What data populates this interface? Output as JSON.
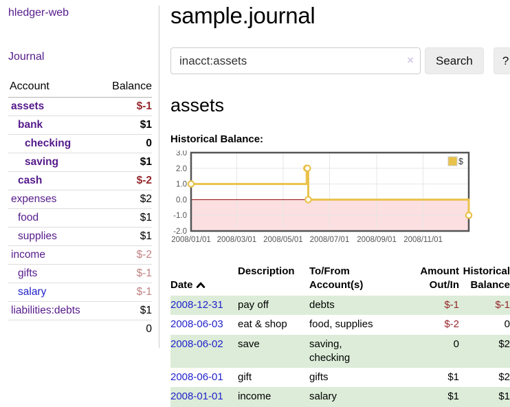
{
  "sidebar": {
    "app_title": "hledger-web",
    "nav": {
      "journal_label": "Journal"
    },
    "accounts_table": {
      "headers": {
        "account": "Account",
        "balance": "Balance"
      },
      "rows": [
        {
          "name": "assets",
          "balance": "$-1",
          "depth": 1,
          "bold": true,
          "link": "purple"
        },
        {
          "name": "bank",
          "balance": "$1",
          "depth": 2,
          "bold": true,
          "link": "purple"
        },
        {
          "name": "checking",
          "balance": "0",
          "depth": 3,
          "bold": true,
          "link": "purple"
        },
        {
          "name": "saving",
          "balance": "$1",
          "depth": 3,
          "bold": true,
          "link": "purple"
        },
        {
          "name": "cash",
          "balance": "$-2",
          "depth": 2,
          "bold": true,
          "link": "purple"
        },
        {
          "name": "expenses",
          "balance": "$2",
          "depth": 1,
          "bold": false,
          "link": "purple"
        },
        {
          "name": "food",
          "balance": "$1",
          "depth": 2,
          "bold": false,
          "link": "purple"
        },
        {
          "name": "supplies",
          "balance": "$1",
          "depth": 2,
          "bold": false,
          "link": "purple"
        },
        {
          "name": "income",
          "balance": "$-2",
          "depth": 1,
          "bold": false,
          "link": "purple"
        },
        {
          "name": "gifts",
          "balance": "$-1",
          "depth": 2,
          "bold": false,
          "link": "purple"
        },
        {
          "name": "salary",
          "balance": "$-1",
          "depth": 2,
          "bold": false,
          "link": "blue"
        },
        {
          "name": "liabilities:debts",
          "balance": "$1",
          "depth": 1,
          "bold": false,
          "link": "purple"
        }
      ],
      "total": "0"
    }
  },
  "main": {
    "title": "sample.journal",
    "search": {
      "value": "inacct:assets",
      "clear_icon": "×",
      "search_button_label": "Search",
      "help_button_label": "?"
    },
    "account_heading": "assets",
    "chart_label": "Historical Balance:"
  },
  "chart_data": {
    "type": "line",
    "steps": true,
    "x_range": [
      "2008-01-01",
      "2008-12-31"
    ],
    "y_range": [
      -2.0,
      3.0
    ],
    "y_ticks": [
      3.0,
      2.0,
      1.0,
      0.0,
      -1.0,
      -2.0
    ],
    "x_ticks": [
      "2008/01/01",
      "2008/03/01",
      "2008/05/01",
      "2008/07/01",
      "2008/09/01",
      "2008/11/01"
    ],
    "grid": true,
    "grid_color": "#e6e6e6",
    "border_color": "#545454",
    "negative_region_color": "#fcdfe0",
    "zero_line_color": "#8b0000",
    "legend": {
      "position": "top-right",
      "label": "$"
    },
    "series": [
      {
        "name": "$",
        "color": "#E9C24B",
        "points": [
          {
            "date": "2008-01-01",
            "value": 1
          },
          {
            "date": "2008-06-01",
            "value": 2
          },
          {
            "date": "2008-06-02",
            "value": 2
          },
          {
            "date": "2008-06-03",
            "value": 0
          },
          {
            "date": "2008-12-31",
            "value": -1
          }
        ]
      }
    ]
  },
  "register_table": {
    "headers": {
      "date": "Date",
      "sort": "ascending",
      "description": "Description",
      "accounts": "To/From\nAccount(s)",
      "amount": "Amount\nOut/In",
      "balance": "Historical\nBalance"
    },
    "rows": [
      {
        "date": "2008-12-31",
        "description": "pay off",
        "accounts": "debts",
        "amount": "$-1",
        "balance": "$-1"
      },
      {
        "date": "2008-06-03",
        "description": "eat & shop",
        "accounts": "food, supplies",
        "amount": "$-2",
        "balance": "0"
      },
      {
        "date": "2008-06-02",
        "description": "save",
        "accounts": "saving,\nchecking",
        "amount": "0",
        "balance": "$2"
      },
      {
        "date": "2008-06-01",
        "description": "gift",
        "accounts": "gifts",
        "amount": "$1",
        "balance": "$2"
      },
      {
        "date": "2008-01-01",
        "description": "income",
        "accounts": "salary",
        "amount": "$1",
        "balance": "$1"
      }
    ]
  }
}
